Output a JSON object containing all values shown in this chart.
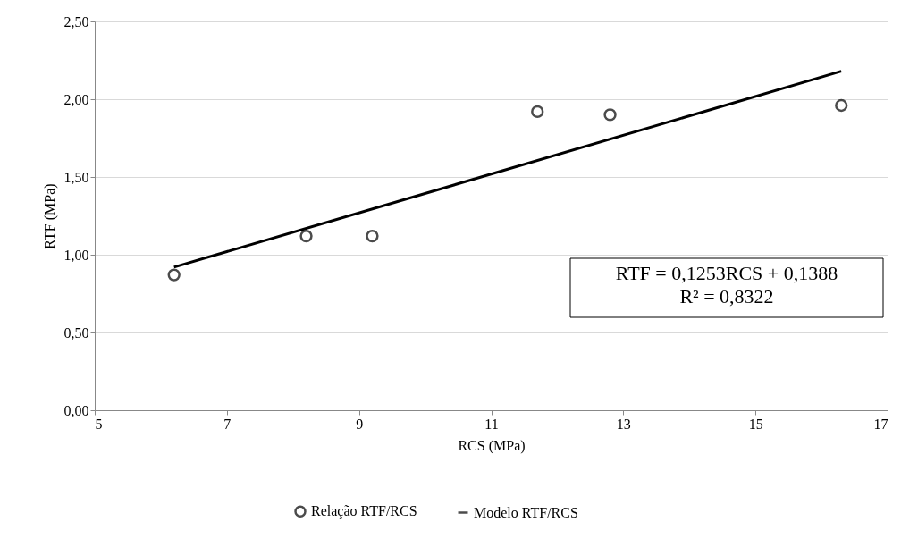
{
  "chart_data": {
    "type": "scatter",
    "xlabel": "RCS (MPa)",
    "ylabel": "RTF (MPa)",
    "xlim": [
      5,
      17
    ],
    "xticks": [
      5,
      7,
      9,
      11,
      13,
      15,
      17
    ],
    "ylim": [
      0,
      2.5
    ],
    "yticks": [
      {
        "value": 0,
        "label": "0,00"
      },
      {
        "value": 0.5,
        "label": "0,50"
      },
      {
        "value": 1,
        "label": "1,00"
      },
      {
        "value": 1.5,
        "label": "1,50"
      },
      {
        "value": 2,
        "label": "2,00"
      },
      {
        "value": 2.5,
        "label": "2,50"
      }
    ],
    "grid": "y",
    "legend": "bottom",
    "series": [
      {
        "name": "Relação RTF/RCS",
        "marker": "circle",
        "color": "#000000",
        "x": [
          6.2,
          8.2,
          9.2,
          11.7,
          12.8,
          16.3
        ],
        "values": [
          0.87,
          1.12,
          1.12,
          1.92,
          1.9,
          1.96
        ]
      },
      {
        "name": "Modelo RTF/RCS",
        "type": "line",
        "color": "#000000",
        "x": [
          6.2,
          16.3
        ],
        "values": [
          0.92,
          2.18
        ]
      }
    ],
    "annotations": [
      "RTF = 0,1253RCS + 0,1388",
      "R² = 0,8322"
    ]
  }
}
